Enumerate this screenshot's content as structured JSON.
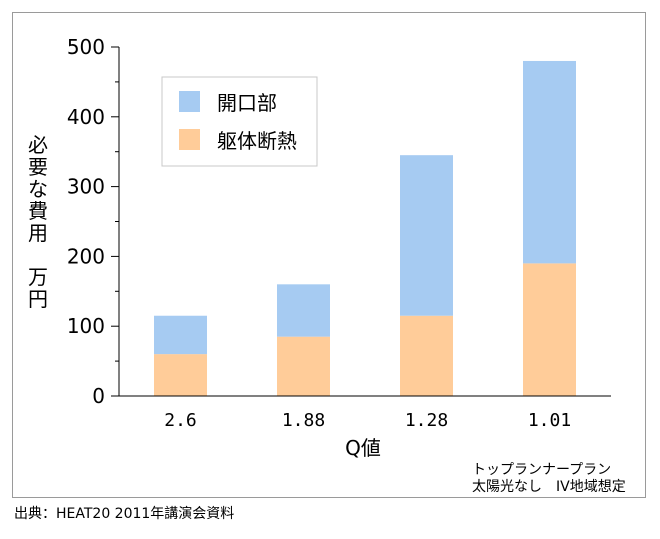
{
  "chart_data": {
    "type": "bar",
    "stacked": true,
    "categories": [
      "2.6",
      "1.88",
      "1.28",
      "1.01"
    ],
    "series": [
      {
        "name": "躯体断熱",
        "values": [
          60,
          85,
          115,
          190
        ],
        "color": "#ffcc99"
      },
      {
        "name": "開口部",
        "values": [
          55,
          75,
          230,
          290
        ],
        "color": "#a6cbf2"
      }
    ],
    "xlabel": "Q値",
    "ylabel": "必要な費用　万円",
    "ylim": [
      0,
      500
    ],
    "yticks": [
      0,
      100,
      200,
      300,
      400,
      500
    ],
    "grid": false,
    "legend_position": "top-left",
    "legend_order": [
      "開口部",
      "躯体断熱"
    ]
  },
  "note": "トップランナープラン\n太陽光なし　IV地域想定",
  "source": "出典：HEAT20 2011年講演会資料"
}
